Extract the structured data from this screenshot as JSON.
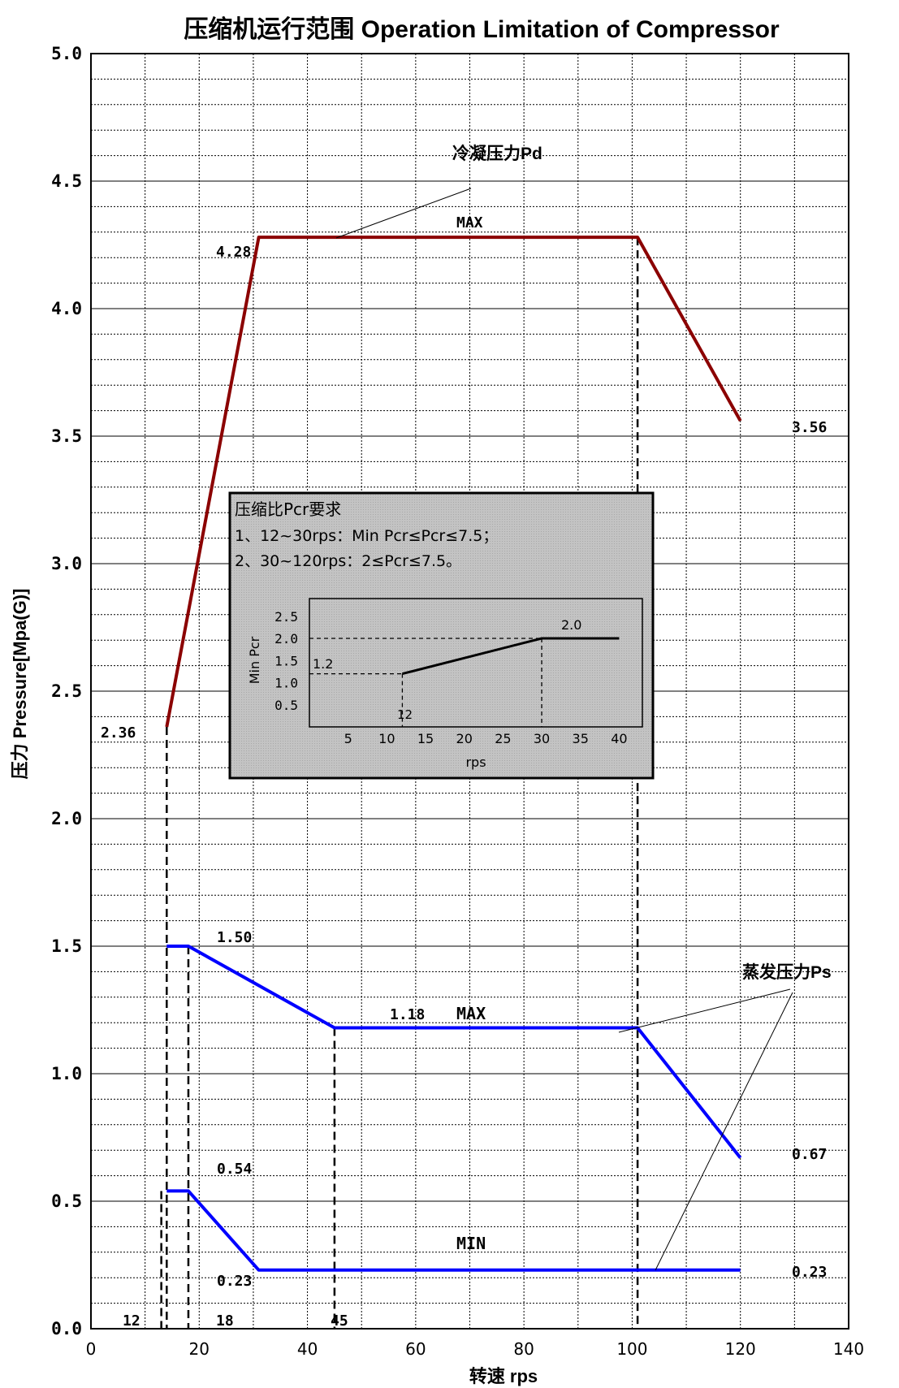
{
  "chart_data": [
    {
      "type": "line",
      "title": "压缩机运行范围 Operation Limitation of Compressor",
      "xlabel": "转速 rps",
      "ylabel": "压力 Pressure[Mpa(G)]",
      "xlim": [
        0,
        140
      ],
      "ylim": [
        0,
        5
      ],
      "x_ticks": [
        "0",
        "20",
        "40",
        "60",
        "80",
        "100",
        "120",
        "140"
      ],
      "y_ticks": [
        "0.0",
        "0.5",
        "1.0",
        "1.5",
        "2.0",
        "2.5",
        "3.0",
        "3.5",
        "4.0",
        "4.5",
        "5.0"
      ],
      "grid": true,
      "series": [
        {
          "name": "冷凝压力Pd MAX",
          "color": "#8B0000",
          "points": [
            [
              14,
              2.36
            ],
            [
              31,
              4.28
            ],
            [
              101,
              4.28
            ],
            [
              120,
              3.56
            ]
          ]
        },
        {
          "name": "蒸发压力Ps MAX",
          "color": "#0000FF",
          "points": [
            [
              14,
              1.5
            ],
            [
              18,
              1.5
            ],
            [
              45,
              1.18
            ],
            [
              101,
              1.18
            ],
            [
              120,
              0.67
            ]
          ]
        },
        {
          "name": "蒸发压力Ps MIN",
          "color": "#0000FF",
          "points": [
            [
              14,
              0.54
            ],
            [
              18,
              0.54
            ],
            [
              31,
              0.23
            ],
            [
              120,
              0.23
            ]
          ]
        }
      ],
      "ref_lines_x": [
        13,
        14,
        18,
        45,
        101
      ],
      "annotations": {
        "pd_title": "冷凝压力Pd",
        "pd_max": "MAX",
        "ps_title": "蒸发压力Ps",
        "ps_max": "MAX",
        "ps_min": "MIN"
      },
      "value_labels": {
        "v428": "4.28",
        "v356": "3.56",
        "v236": "2.36",
        "v150": "1.50",
        "v118": "1.18",
        "v067": "0.67",
        "v054": "0.54",
        "v023a": "0.23",
        "v023b": "0.23",
        "x12": "12",
        "x18": "18",
        "x45": "45"
      }
    },
    {
      "type": "line",
      "title": "压缩比Pcr要求",
      "notes": [
        "1、12~30rps：Min Pcr≤Pcr≤7.5；",
        "2、30~120rps：2≤Pcr≤7.5。"
      ],
      "xlabel": "rps",
      "ylabel": "Min Pcr",
      "xlim": [
        0,
        43
      ],
      "ylim": [
        0,
        2.9
      ],
      "x_ticks": [
        "5",
        "10",
        "15",
        "20",
        "25",
        "30",
        "35",
        "40"
      ],
      "y_ticks": [
        "0.5",
        "1.0",
        "1.5",
        "2.0",
        "2.5"
      ],
      "series": [
        {
          "name": "",
          "points": [
            [
              12,
              1.2
            ],
            [
              30,
              2.0
            ],
            [
              40,
              2.0
            ]
          ]
        }
      ],
      "value_labels": {
        "v12": "1.2",
        "v20": "2.0",
        "x12": "12"
      }
    }
  ]
}
